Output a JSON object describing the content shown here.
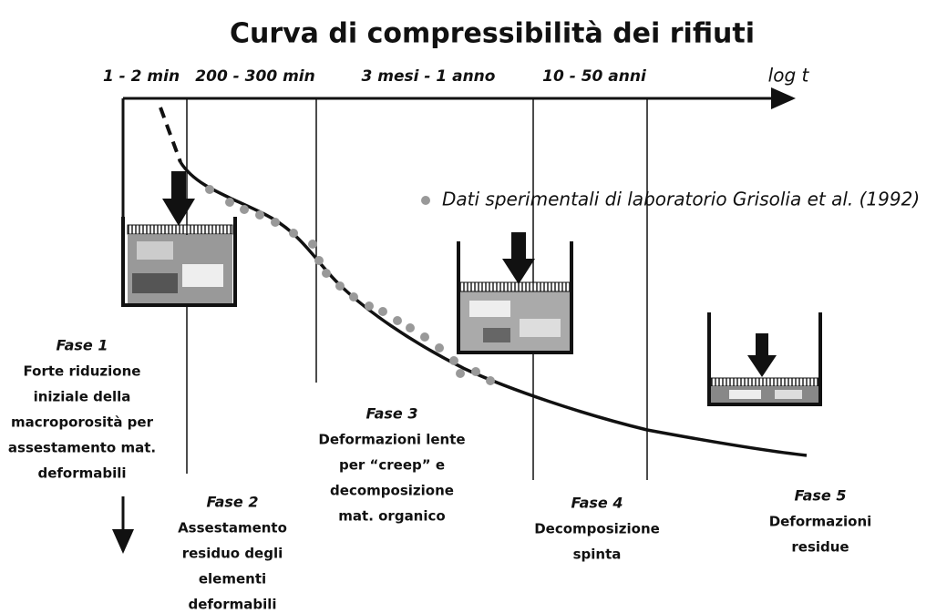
{
  "header": {
    "title": "Curva di compressibilità dei rifiuti"
  },
  "axis": {
    "time_labels": [
      "1 - 2 min",
      "200 - 300 min",
      "3 mesi - 1 anno",
      "10 - 50 anni"
    ],
    "label": "log t"
  },
  "legend": {
    "text": "Dati sperimentali di laboratorio Grisolia et al. (1992)"
  },
  "phases": [
    {
      "title": "Fase 1",
      "lines": [
        "Forte riduzione",
        "iniziale della",
        "macroporosità per",
        "assestamento mat.",
        "deformabili"
      ]
    },
    {
      "title": "Fase 2",
      "lines": [
        "Assestamento",
        "residuo degli",
        "elementi",
        "deformabili"
      ]
    },
    {
      "title": "Fase 3",
      "lines": [
        "Deformazioni lente",
        "per “creep” e",
        "decomposizione",
        "mat. organico"
      ]
    },
    {
      "title": "Fase 4",
      "lines": [
        "Decomposizione",
        "spinta"
      ]
    },
    {
      "title": "Fase 5",
      "lines": [
        "Deformazioni",
        "residue"
      ]
    }
  ]
}
